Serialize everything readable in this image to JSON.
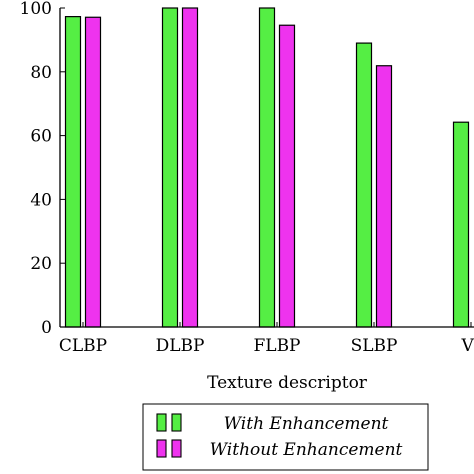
{
  "chart_data": {
    "type": "bar",
    "xlabel": "Texture descriptor",
    "ylabel": "",
    "ylim": [
      0,
      100
    ],
    "yticks": [
      0,
      20,
      40,
      60,
      80,
      100
    ],
    "categories": [
      "CLBP",
      "DLBP",
      "FLBP",
      "SLBP",
      "VI"
    ],
    "series": [
      {
        "name": "With Enhancement",
        "color": "#55ee44",
        "values": [
          97.3,
          100,
          100,
          89,
          64.2
        ]
      },
      {
        "name": "Without Enhancement",
        "color": "#ee33ee",
        "values": [
          97.1,
          100,
          94.6,
          81.9,
          null
        ]
      }
    ],
    "legend": "bottom",
    "grid": false
  }
}
